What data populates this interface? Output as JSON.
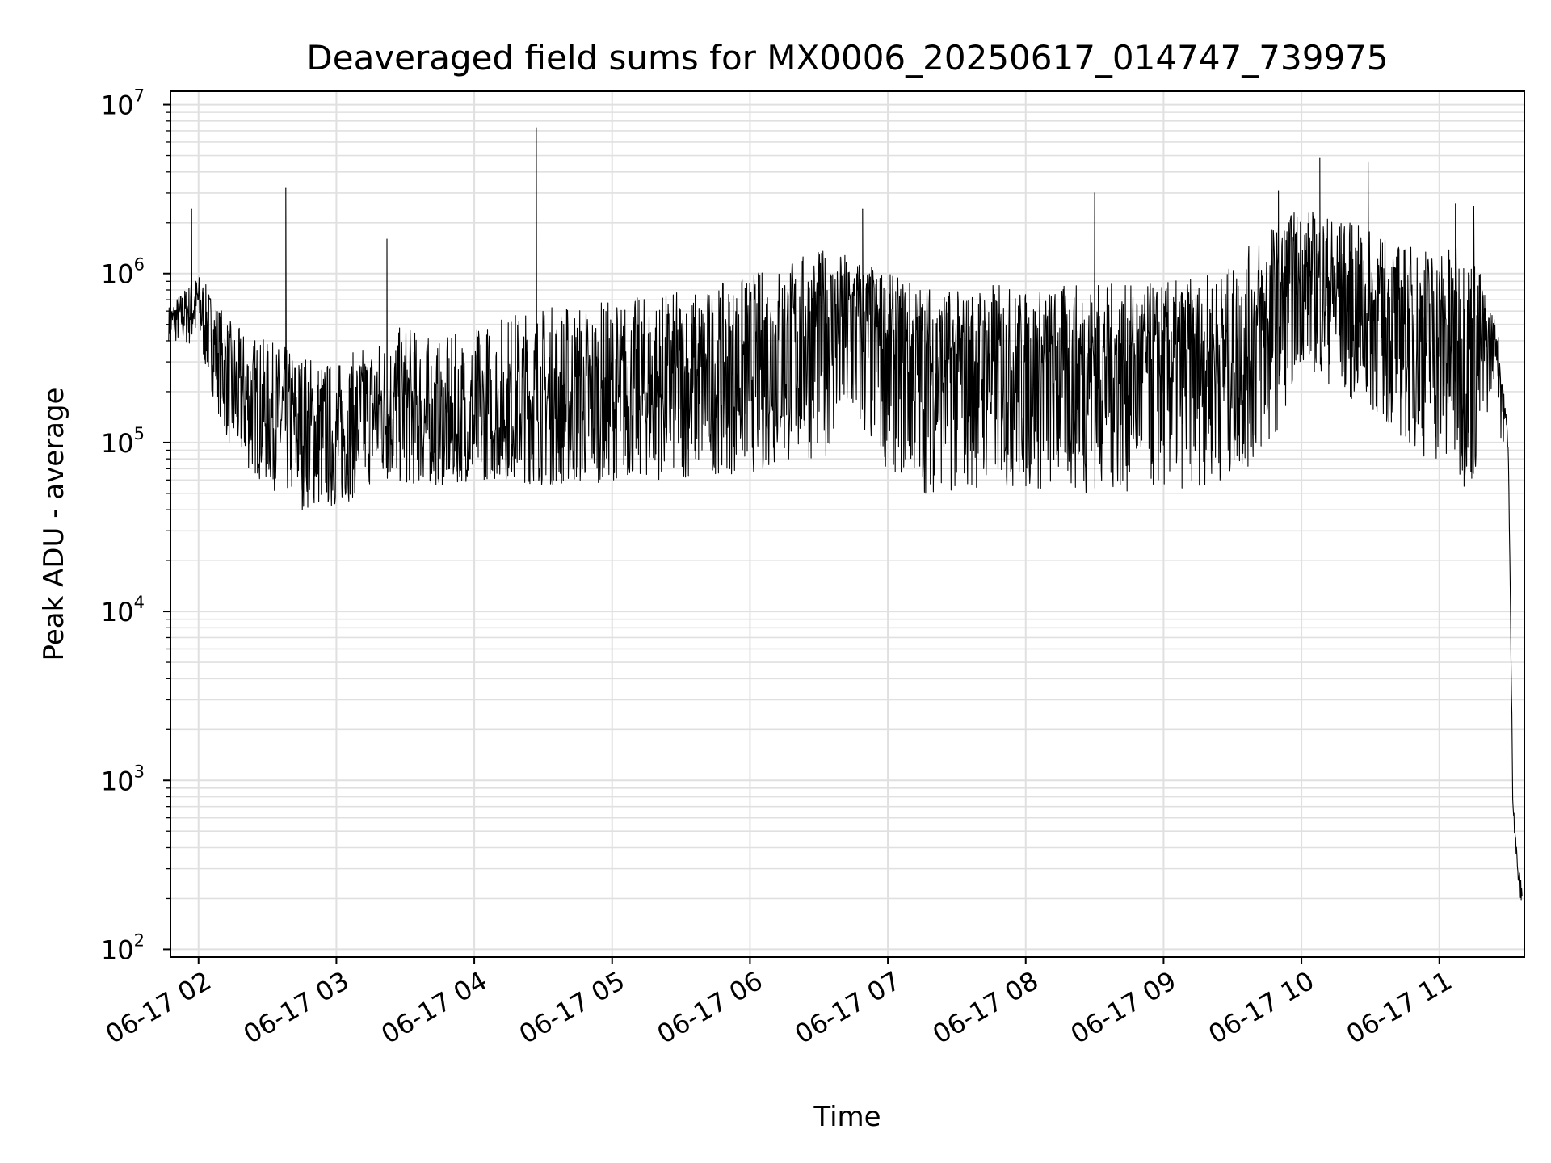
{
  "chart_data": {
    "type": "line",
    "title": "Deaveraged field sums for MX0006_20250617_014747_739975",
    "xlabel": "Time",
    "ylabel": "Peak ADU - average",
    "yscale": "log",
    "ylim": [
      90,
      12000000
    ],
    "xlim": [
      "06-17 01:47:47",
      "06-17 11:37:00"
    ],
    "grid": true,
    "legend": "none",
    "colors": {
      "line": "#000000",
      "grid": "#e0e0e0",
      "axes": "#000000",
      "background": "#ffffff"
    },
    "x_ticks": [
      "06-17 02",
      "06-17 03",
      "06-17 04",
      "06-17 05",
      "06-17 06",
      "06-17 07",
      "06-17 08",
      "06-17 09",
      "06-17 10",
      "06-17 11"
    ],
    "y_ticks": [
      {
        "base": "10",
        "exp": "2",
        "value": 100
      },
      {
        "base": "10",
        "exp": "3",
        "value": 1000
      },
      {
        "base": "10",
        "exp": "4",
        "value": 10000
      },
      {
        "base": "10",
        "exp": "5",
        "value": 100000
      },
      {
        "base": "10",
        "exp": "6",
        "value": 1000000
      },
      {
        "base": "10",
        "exp": "7",
        "value": 10000000
      }
    ],
    "series": [
      {
        "color": "#000000",
        "x": [
          "01:47",
          "02:00",
          "02:15",
          "02:30",
          "02:45",
          "03:00",
          "03:15",
          "03:30",
          "03:45",
          "04:00",
          "04:15",
          "04:30",
          "04:45",
          "05:00",
          "05:15",
          "05:30",
          "05:45",
          "06:00",
          "06:15",
          "06:30",
          "06:45",
          "07:00",
          "07:15",
          "07:30",
          "07:45",
          "08:00",
          "08:15",
          "08:30",
          "08:45",
          "09:00",
          "09:15",
          "09:30",
          "09:45",
          "10:00",
          "10:15",
          "10:30",
          "10:45",
          "11:00",
          "11:15",
          "11:25",
          "11:30",
          "11:32",
          "11:34",
          "11:36"
        ],
        "values": [
          500000,
          700000,
          200000,
          150000,
          120000,
          100000,
          150000,
          160000,
          110000,
          110000,
          160000,
          180000,
          150000,
          160000,
          200000,
          220000,
          230000,
          300000,
          400000,
          500000,
          600000,
          400000,
          300000,
          280000,
          300000,
          280000,
          300000,
          320000,
          300000,
          300000,
          320000,
          350000,
          500000,
          1000000,
          800000,
          600000,
          500000,
          450000,
          400000,
          400000,
          100000,
          800,
          300,
          200
        ],
        "upper_envelope": [
          650000,
          1000000,
          500000,
          400000,
          350000,
          300000,
          400000,
          500000,
          400000,
          500000,
          600000,
          650000,
          700000,
          700000,
          750000,
          800000,
          850000,
          1000000,
          1200000,
          1400000,
          1300000,
          1000000,
          900000,
          800000,
          900000,
          800000,
          850000,
          900000,
          850000,
          900000,
          950000,
          1100000,
          2000000,
          2500000,
          2200000,
          1800000,
          1500000,
          1500000,
          1400000,
          500000,
          160000,
          800,
          350,
          300
        ],
        "lower_envelope": [
          400000,
          350000,
          80000,
          55000,
          40000,
          40000,
          55000,
          55000,
          55000,
          60000,
          60000,
          55000,
          55000,
          60000,
          60000,
          60000,
          65000,
          65000,
          70000,
          80000,
          100000,
          70000,
          50000,
          50000,
          55000,
          50000,
          50000,
          50000,
          50000,
          50000,
          55000,
          60000,
          80000,
          300000,
          200000,
          150000,
          100000,
          70000,
          50000,
          300000,
          15000,
          600,
          160,
          150
        ],
        "spikes": [
          {
            "x": "01:57",
            "y": 2400000
          },
          {
            "x": "02:38",
            "y": 3200000
          },
          {
            "x": "03:22",
            "y": 1600000
          },
          {
            "x": "04:27",
            "y": 7300000
          },
          {
            "x": "06:49",
            "y": 2400000
          },
          {
            "x": "08:30",
            "y": 3000000
          },
          {
            "x": "09:50",
            "y": 3100000
          },
          {
            "x": "10:08",
            "y": 4800000
          },
          {
            "x": "10:29",
            "y": 4600000
          },
          {
            "x": "11:07",
            "y": 2600000
          },
          {
            "x": "11:15",
            "y": 2500000
          }
        ]
      }
    ]
  }
}
